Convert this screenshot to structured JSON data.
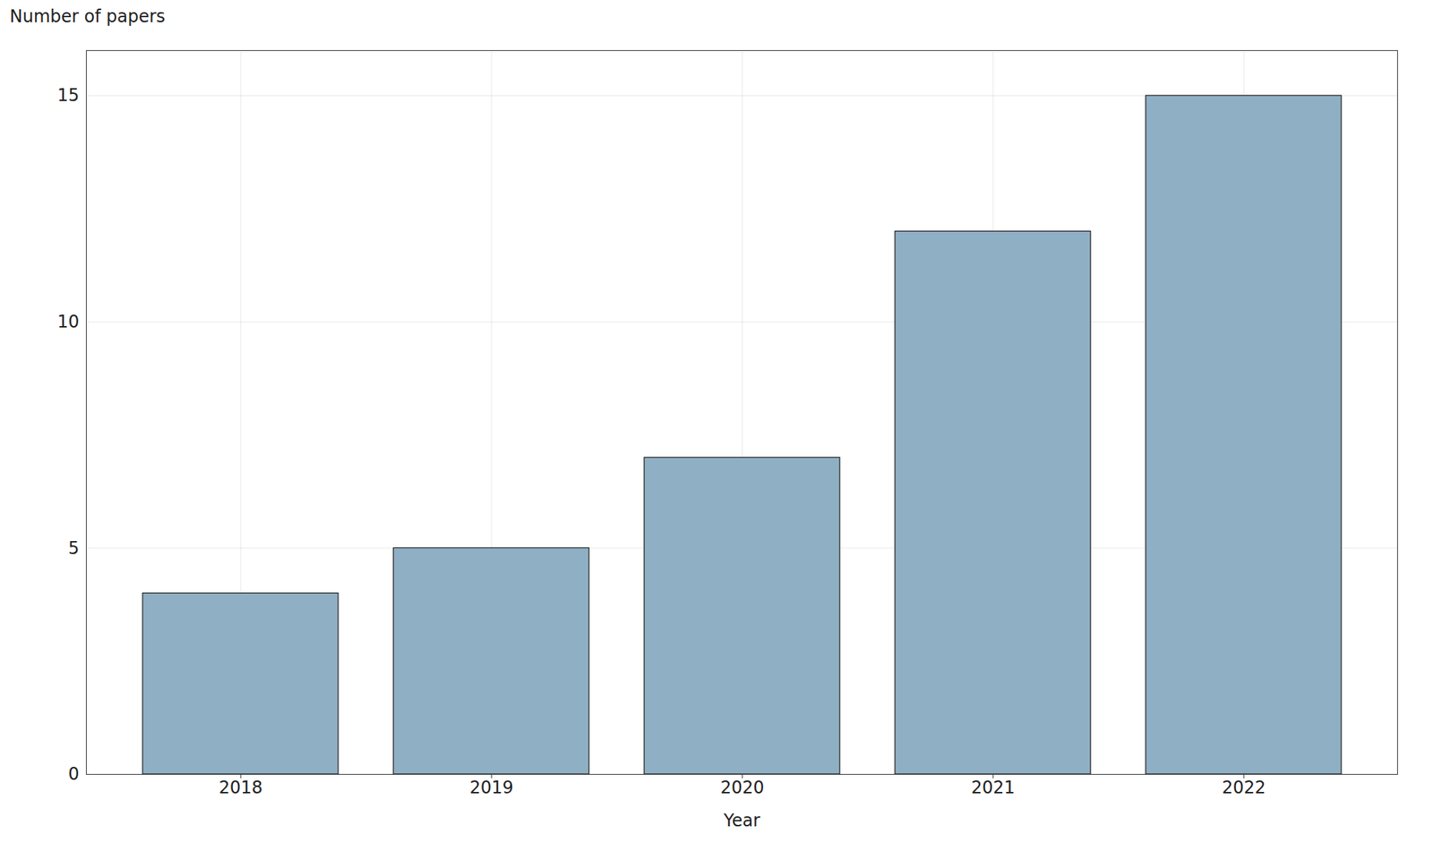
{
  "chart_data": {
    "type": "bar",
    "categories": [
      "2018",
      "2019",
      "2020",
      "2021",
      "2022"
    ],
    "values": [
      4,
      5,
      7,
      12,
      15
    ],
    "color": "#8fafc4",
    "xlabel": "Year",
    "ylabel": "Number of papers",
    "ylim": [
      0,
      16
    ],
    "yticks": [
      0,
      5,
      10,
      15
    ],
    "grid": true
  }
}
